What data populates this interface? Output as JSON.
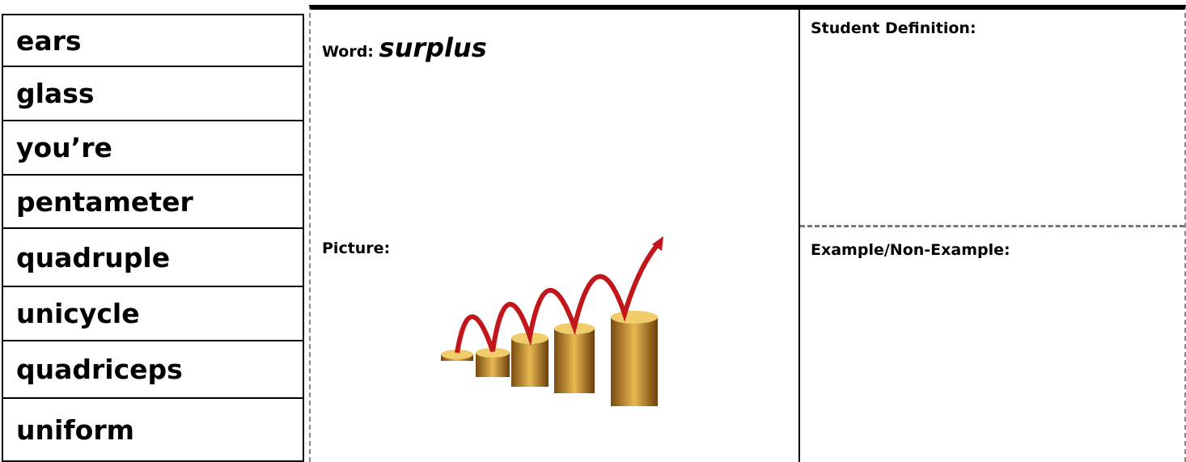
{
  "words": [
    "ears",
    "glass",
    "you’re",
    "pentameter",
    "quadruple",
    "unicycle",
    "quadriceps",
    "uniform"
  ],
  "frayer": {
    "word_label": "Word:",
    "word": "surplus",
    "definition_label": "Student Definition:",
    "picture_label": "Picture:",
    "example_label": "Example/Non-Example:"
  }
}
